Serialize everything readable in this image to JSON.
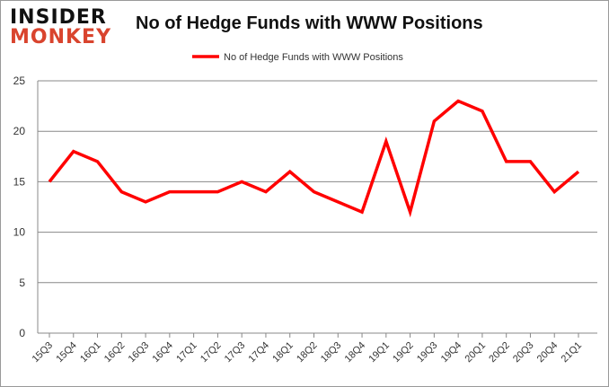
{
  "logo": {
    "line1": "INSIDER",
    "line2": "MONKEY"
  },
  "chart_data": {
    "type": "line",
    "title": "No of Hedge Funds with WWW Positions",
    "categories": [
      "15Q3",
      "15Q4",
      "16Q1",
      "16Q2",
      "16Q3",
      "16Q4",
      "17Q1",
      "17Q2",
      "17Q3",
      "17Q4",
      "18Q1",
      "18Q2",
      "18Q3",
      "18Q4",
      "19Q1",
      "19Q2",
      "19Q3",
      "19Q4",
      "20Q1",
      "20Q2",
      "20Q3",
      "20Q4",
      "21Q1"
    ],
    "series": [
      {
        "name": "No of Hedge Funds with WWW Positions",
        "color": "#ff0000",
        "values": [
          15,
          18,
          17,
          14,
          13,
          14,
          14,
          14,
          15,
          14,
          16,
          14,
          13,
          12,
          19,
          12,
          21,
          23,
          22,
          17,
          17,
          14,
          16
        ]
      }
    ],
    "ylim": [
      0,
      25
    ],
    "yticks": [
      0,
      5,
      10,
      15,
      20,
      25
    ],
    "grid": true,
    "legend": "top-center"
  }
}
